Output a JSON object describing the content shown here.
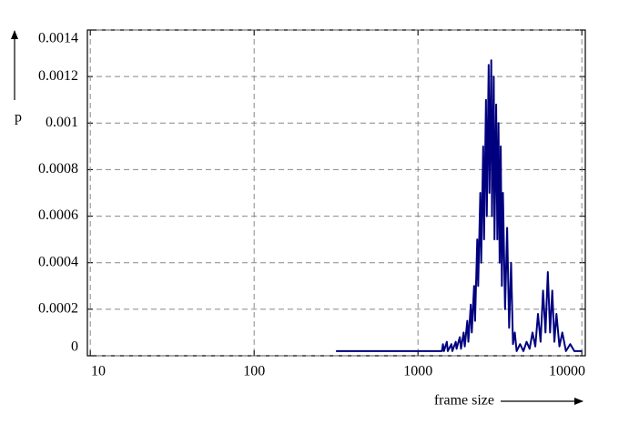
{
  "chart_data": {
    "type": "line",
    "xlabel": "frame size",
    "ylabel": "p",
    "log_x": true,
    "grid": true,
    "color": "#00007f",
    "xlim": [
      9.6,
      10500
    ],
    "xticks": [
      10,
      100,
      1000,
      10000
    ],
    "ylim": [
      0,
      0.0014
    ],
    "yticks": [
      0,
      0.0002,
      0.0004,
      0.0006,
      0.0008,
      0.001,
      0.0012,
      0.0014
    ],
    "x": [
      316,
      1400,
      1420,
      1440,
      1500,
      1520,
      1600,
      1620,
      1700,
      1720,
      1800,
      1830,
      1900,
      1930,
      2000,
      2030,
      2100,
      2130,
      2200,
      2230,
      2300,
      2330,
      2400,
      2430,
      2500,
      2530,
      2600,
      2630,
      2700,
      2730,
      2800,
      2830,
      2900,
      2930,
      3000,
      3050,
      3100,
      3150,
      3200,
      3250,
      3300,
      3400,
      3500,
      3600,
      3700,
      3800,
      3900,
      4000,
      4200,
      4400,
      4600,
      4800,
      5000,
      5200,
      5400,
      5600,
      5800,
      6000,
      6200,
      6400,
      6600,
      6800,
      7000,
      7300,
      7600,
      8000,
      8500,
      9000,
      10000
    ],
    "values": [
      2e-05,
      2e-05,
      5e-05,
      2e-05,
      6e-05,
      2e-05,
      5e-05,
      2e-05,
      6e-05,
      3e-05,
      8e-05,
      3e-05,
      0.0001,
      4e-05,
      0.00015,
      6e-05,
      0.00022,
      0.0001,
      0.0003,
      0.00015,
      0.0005,
      0.0003,
      0.0007,
      0.0004,
      0.0009,
      0.0005,
      0.0011,
      0.0006,
      0.00125,
      0.0007,
      0.00127,
      0.0006,
      0.0012,
      0.0005,
      0.00108,
      0.0005,
      0.001,
      0.0004,
      0.0009,
      0.0003,
      0.0007,
      0.0002,
      0.00055,
      0.00012,
      0.0004,
      5e-05,
      0.0001,
      2e-05,
      5e-05,
      2e-05,
      6e-05,
      3e-05,
      0.0001,
      4e-05,
      0.00018,
      6e-05,
      0.00028,
      0.0001,
      0.00036,
      0.0001,
      0.00028,
      6e-05,
      0.00018,
      4e-05,
      0.0001,
      2e-05,
      5e-05,
      2e-05,
      2e-05
    ]
  }
}
